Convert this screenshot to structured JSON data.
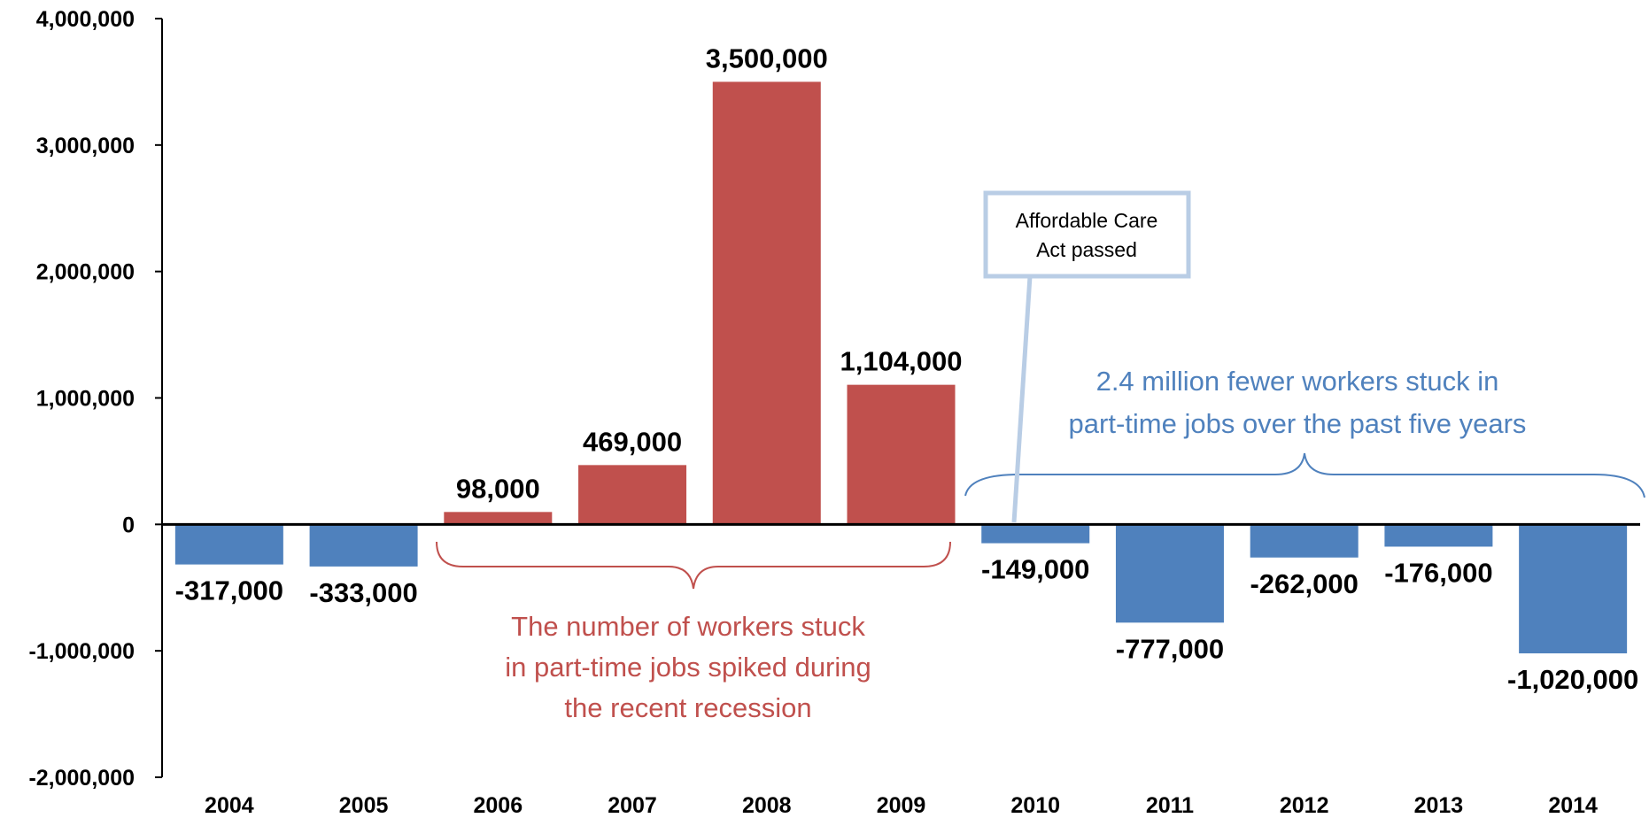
{
  "chart_data": {
    "type": "bar",
    "categories": [
      "2004",
      "2005",
      "2006",
      "2007",
      "2008",
      "2009",
      "2010",
      "2011",
      "2012",
      "2013",
      "2014"
    ],
    "values": [
      -317000,
      -333000,
      98000,
      469000,
      3500000,
      1104000,
      -149000,
      -777000,
      -262000,
      -176000,
      -1020000
    ],
    "data_labels": [
      "-317,000",
      "-333,000",
      "98,000",
      "469,000",
      "3,500,000",
      "1,104,000",
      "-149,000",
      "-777,000",
      "-262,000",
      "-176,000",
      "-1,020,000"
    ],
    "ylim": [
      -2000000,
      4000000
    ],
    "yticks": [
      4000000,
      3000000,
      2000000,
      1000000,
      0,
      -1000000,
      -2000000
    ],
    "ytick_labels": [
      "4,000,000",
      "3,000,000",
      "2,000,000",
      "1,000,000",
      "0",
      "-1,000,000",
      "-2,000,000"
    ],
    "grid": false,
    "colors": {
      "negative": "#4f81bd",
      "positive": "#c0504d"
    },
    "annotations": {
      "recession_text": [
        "The number of workers stuck",
        "in part-time jobs spiked during",
        "the recent recession"
      ],
      "recovery_text": [
        "2.4 million fewer workers stuck in",
        "part-time jobs over the past five years"
      ],
      "callout_text": [
        "Affordable Care",
        "Act passed"
      ],
      "callout_border_color": "#b9cde5"
    }
  }
}
